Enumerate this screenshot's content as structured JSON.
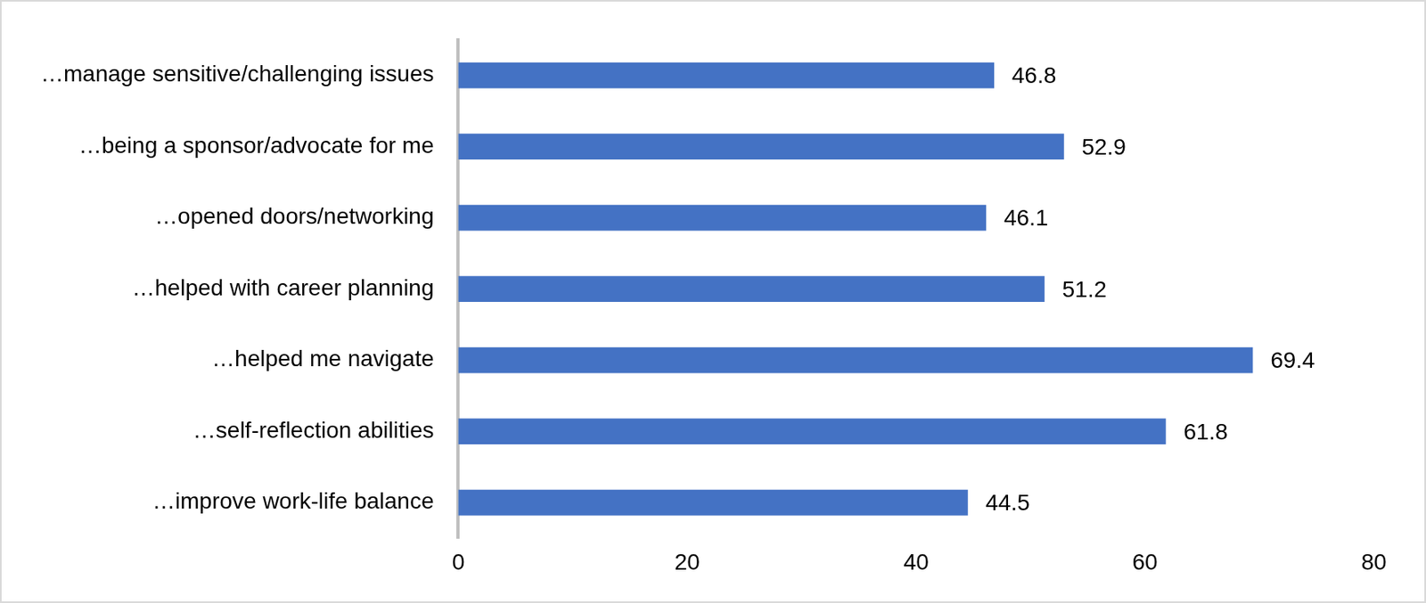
{
  "chart_data": {
    "type": "bar",
    "orientation": "horizontal",
    "categories": [
      "…manage sensitive/challenging issues",
      "…being a sponsor/advocate for me",
      "…opened doors/networking",
      "…helped with career planning",
      "…helped me navigate",
      "…self-reflection abilities",
      "…improve work-life balance"
    ],
    "values": [
      46.8,
      52.9,
      46.1,
      51.2,
      69.4,
      61.8,
      44.5
    ],
    "color": "#4472c4",
    "xlim": [
      0,
      80
    ],
    "xticks": [
      0,
      20,
      40,
      60,
      80
    ],
    "grid": false,
    "data_labels": true
  }
}
